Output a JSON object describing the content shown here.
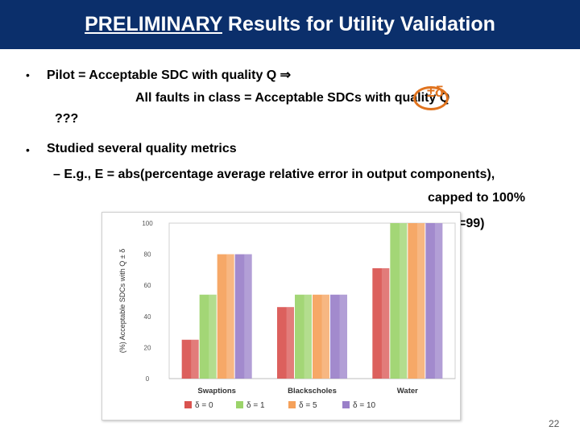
{
  "title_prefix": "PRELIMINARY",
  "title_rest": " Results for Utility Validation",
  "bullets": {
    "b1": "Pilot = Acceptable SDC with quality Q ⇒",
    "b1_cont": "All faults in class = Acceptable SDCs with quality Q",
    "b1_q": "???",
    "b2": "Studied several quality metrics",
    "sub1": "– E.g., E = abs(percentage average relative error in output components),",
    "sub1_cont": "capped to 100%",
    "partial": "=99)"
  },
  "delta_mark": "±δ",
  "page_number": "22",
  "chart_data": {
    "type": "bar",
    "categories": [
      "Swaptions",
      "Blackscholes",
      "Water"
    ],
    "series": [
      {
        "name": "δ = 0",
        "values": [
          25,
          46,
          71
        ],
        "color": "#d9534f"
      },
      {
        "name": "δ = 1",
        "values": [
          54,
          54,
          100
        ],
        "color": "#9bd36a"
      },
      {
        "name": "δ = 5",
        "values": [
          80,
          54,
          100
        ],
        "color": "#f5a15a"
      },
      {
        "name": "δ = 10",
        "values": [
          80,
          54,
          100
        ],
        "color": "#9a80c9"
      }
    ],
    "ylabel": "(%) Acceptable SDCs with Q ± δ",
    "ylim": [
      0,
      100
    ],
    "yticks": [
      "0",
      "20",
      "40",
      "60",
      "80",
      "100"
    ],
    "legend_position": "bottom",
    "grid": false
  }
}
